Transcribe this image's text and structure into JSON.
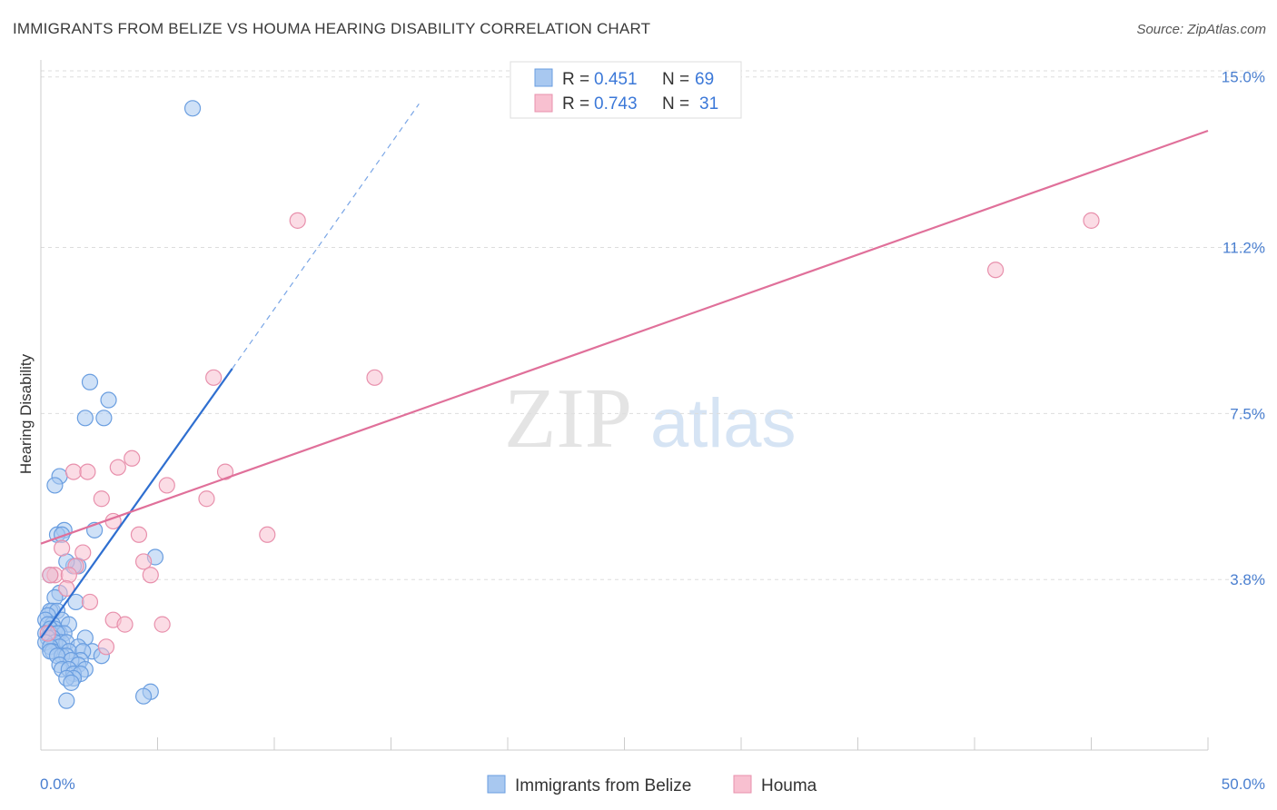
{
  "header": {
    "title": "IMMIGRANTS FROM BELIZE VS HOUMA HEARING DISABILITY CORRELATION CHART",
    "source": "Source: ZipAtlas.com"
  },
  "watermark": {
    "zip": "ZIP",
    "atlas": "atlas"
  },
  "legend_top": {
    "rows": [
      {
        "r_label": "R =",
        "r_value": "0.451",
        "n_label": "N =",
        "n_value": "69",
        "color": "#a8c8f0",
        "stroke": "#6a9ee0"
      },
      {
        "r_label": "R =",
        "r_value": "0.743",
        "n_label": "N =",
        "n_value": "31",
        "color": "#f8c0d0",
        "stroke": "#e890ac"
      }
    ]
  },
  "legend_bottom": [
    {
      "label": "Immigrants from Belize",
      "color": "#a8c8f0",
      "stroke": "#6a9ee0"
    },
    {
      "label": "Houma",
      "color": "#f8c0d0",
      "stroke": "#e890ac"
    }
  ],
  "chart_data": {
    "type": "scatter",
    "title": "IMMIGRANTS FROM BELIZE VS HOUMA HEARING DISABILITY CORRELATION CHART",
    "xlabel": "",
    "ylabel": "Hearing Disability",
    "xlim": [
      0,
      50
    ],
    "ylim": [
      0,
      15.5
    ],
    "x_tick_labels": [
      "0.0%",
      "50.0%"
    ],
    "y_ticks": [
      3.8,
      7.5,
      11.2,
      15.0
    ],
    "y_tick_labels": [
      "3.8%",
      "7.5%",
      "11.2%",
      "15.0%"
    ],
    "grid": true,
    "legend_position": "top-center",
    "series": [
      {
        "name": "Immigrants from Belize",
        "color": "#6a9ee0",
        "fill": "#a8c8f0",
        "trend": {
          "x": [
            0,
            8.2
          ],
          "y": [
            2.5,
            8.5
          ],
          "extended_to": [
            16.2,
            14.4
          ]
        },
        "points": [
          [
            6.5,
            14.3
          ],
          [
            2.1,
            8.2
          ],
          [
            2.9,
            7.8
          ],
          [
            1.9,
            7.4
          ],
          [
            2.7,
            7.4
          ],
          [
            0.8,
            6.1
          ],
          [
            0.6,
            5.9
          ],
          [
            1.0,
            4.9
          ],
          [
            0.7,
            4.8
          ],
          [
            0.9,
            4.8
          ],
          [
            2.3,
            4.9
          ],
          [
            1.6,
            4.1
          ],
          [
            1.4,
            4.1
          ],
          [
            1.1,
            4.2
          ],
          [
            4.9,
            4.3
          ],
          [
            0.4,
            3.9
          ],
          [
            0.8,
            3.5
          ],
          [
            0.6,
            3.4
          ],
          [
            1.5,
            3.3
          ],
          [
            0.5,
            3.1
          ],
          [
            0.4,
            3.1
          ],
          [
            0.7,
            3.1
          ],
          [
            0.3,
            3.0
          ],
          [
            0.9,
            2.9
          ],
          [
            0.2,
            2.9
          ],
          [
            0.5,
            2.8
          ],
          [
            1.2,
            2.8
          ],
          [
            0.3,
            2.8
          ],
          [
            0.6,
            2.7
          ],
          [
            0.4,
            2.7
          ],
          [
            0.8,
            2.6
          ],
          [
            0.2,
            2.6
          ],
          [
            1.0,
            2.6
          ],
          [
            0.4,
            2.6
          ],
          [
            0.7,
            2.6
          ],
          [
            0.5,
            2.5
          ],
          [
            0.3,
            2.5
          ],
          [
            1.9,
            2.5
          ],
          [
            0.9,
            2.4
          ],
          [
            0.6,
            2.4
          ],
          [
            0.2,
            2.4
          ],
          [
            1.1,
            2.4
          ],
          [
            0.8,
            2.3
          ],
          [
            0.4,
            2.3
          ],
          [
            1.6,
            2.3
          ],
          [
            0.5,
            2.2
          ],
          [
            1.2,
            2.2
          ],
          [
            2.2,
            2.2
          ],
          [
            1.8,
            2.2
          ],
          [
            0.4,
            2.2
          ],
          [
            0.9,
            2.1
          ],
          [
            2.6,
            2.1
          ],
          [
            1.1,
            2.1
          ],
          [
            0.7,
            2.1
          ],
          [
            1.7,
            2.0
          ],
          [
            1.3,
            2.0
          ],
          [
            0.8,
            1.9
          ],
          [
            1.6,
            1.9
          ],
          [
            0.9,
            1.8
          ],
          [
            1.9,
            1.8
          ],
          [
            1.2,
            1.8
          ],
          [
            1.4,
            1.7
          ],
          [
            1.7,
            1.7
          ],
          [
            1.4,
            1.6
          ],
          [
            1.1,
            1.6
          ],
          [
            1.3,
            1.5
          ],
          [
            4.7,
            1.3
          ],
          [
            4.4,
            1.2
          ],
          [
            1.1,
            1.1
          ]
        ]
      },
      {
        "name": "Houma",
        "color": "#e890ac",
        "fill": "#f8c0d0",
        "trend": {
          "x": [
            0,
            50
          ],
          "y": [
            4.6,
            13.8
          ]
        },
        "points": [
          [
            11.0,
            11.8
          ],
          [
            45.0,
            11.8
          ],
          [
            40.9,
            10.7
          ],
          [
            7.4,
            8.3
          ],
          [
            14.3,
            8.3
          ],
          [
            3.9,
            6.5
          ],
          [
            3.3,
            6.3
          ],
          [
            1.4,
            6.2
          ],
          [
            2.0,
            6.2
          ],
          [
            7.9,
            6.2
          ],
          [
            5.4,
            5.9
          ],
          [
            2.6,
            5.6
          ],
          [
            7.1,
            5.6
          ],
          [
            3.1,
            5.1
          ],
          [
            4.2,
            4.8
          ],
          [
            9.7,
            4.8
          ],
          [
            0.9,
            4.5
          ],
          [
            1.8,
            4.4
          ],
          [
            4.4,
            4.2
          ],
          [
            1.5,
            4.1
          ],
          [
            0.6,
            3.9
          ],
          [
            1.2,
            3.9
          ],
          [
            0.4,
            3.9
          ],
          [
            4.7,
            3.9
          ],
          [
            1.1,
            3.6
          ],
          [
            2.1,
            3.3
          ],
          [
            3.1,
            2.9
          ],
          [
            3.6,
            2.8
          ],
          [
            5.2,
            2.8
          ],
          [
            2.8,
            2.3
          ],
          [
            0.3,
            2.6
          ]
        ]
      }
    ]
  }
}
